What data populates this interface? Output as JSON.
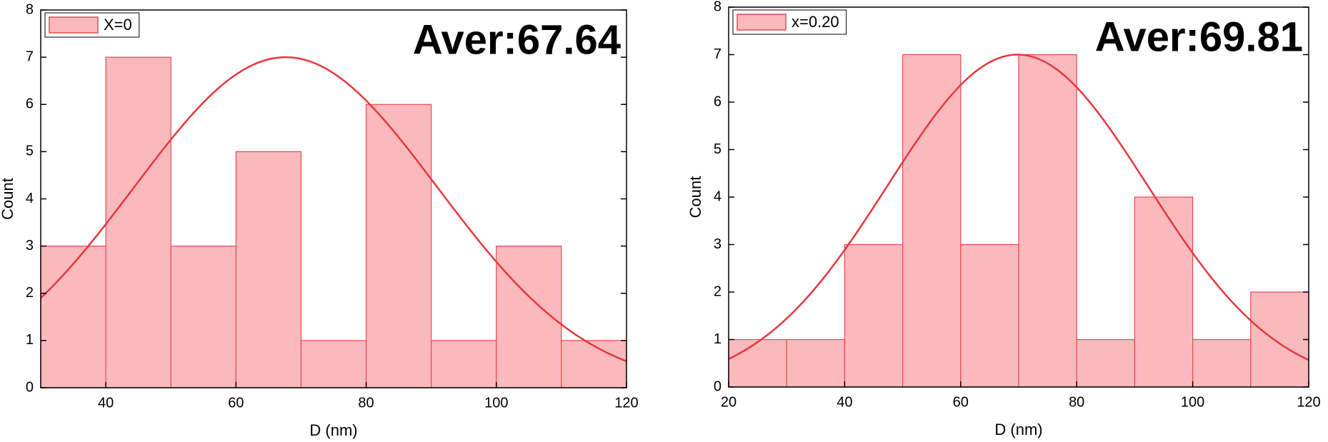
{
  "chart_data": [
    {
      "type": "histogram",
      "xlabel": "D (nm)",
      "ylabel": "Count",
      "annotation": "Aver:67.64",
      "series": [
        {
          "name": "X=0",
          "color": "#f9b9bd",
          "edge_color": "#e84a4f",
          "bins": [
            30,
            40,
            50,
            60,
            70,
            80,
            90,
            100,
            110,
            120
          ],
          "values": [
            3,
            7,
            3,
            5,
            1,
            6,
            1,
            3,
            1
          ]
        }
      ],
      "fit": {
        "mean": 67.64,
        "sd": 23.3,
        "peak": 7,
        "color": "#e8373c"
      },
      "xlim": [
        30,
        120
      ],
      "xticks": [
        40,
        60,
        80,
        100,
        120
      ],
      "ylim": [
        0,
        8
      ],
      "yticks": [
        0,
        1,
        2,
        3,
        4,
        5,
        6,
        7,
        8
      ],
      "legend": "upper-left"
    },
    {
      "type": "histogram",
      "xlabel": "D (nm)",
      "ylabel": "Count",
      "annotation": "Aver:69.81",
      "series": [
        {
          "name": "x=0.20",
          "color": "#f9b9bd",
          "edge_color": "#e84a4f",
          "bins": [
            20,
            30,
            40,
            50,
            60,
            70,
            80,
            90,
            100,
            110,
            120
          ],
          "values": [
            1,
            1,
            3,
            7,
            3,
            7,
            1,
            4,
            1,
            2
          ]
        }
      ],
      "fit": {
        "mean": 69.81,
        "sd": 22.4,
        "peak": 7,
        "color": "#e8373c"
      },
      "xlim": [
        20,
        120
      ],
      "xticks": [
        20,
        40,
        60,
        80,
        100,
        120
      ],
      "ylim": [
        0,
        8
      ],
      "yticks": [
        0,
        1,
        2,
        3,
        4,
        5,
        6,
        7,
        8
      ],
      "legend": "upper-left"
    }
  ]
}
